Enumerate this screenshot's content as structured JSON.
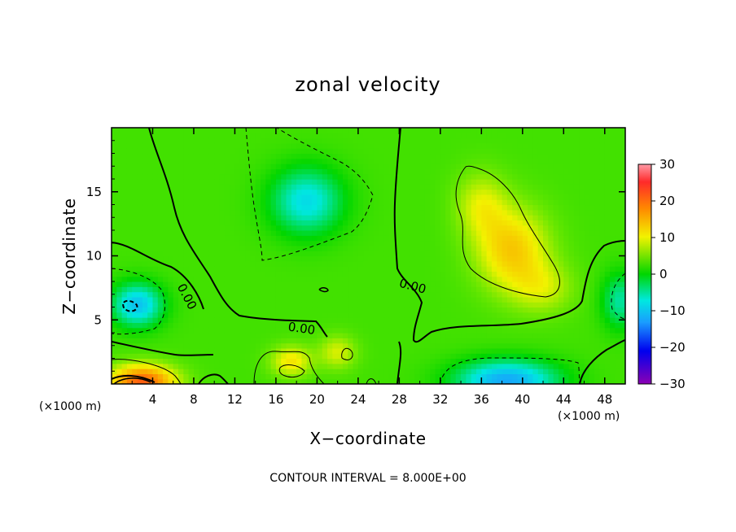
{
  "chart_data": {
    "type": "heatmap",
    "title": "zonal velocity",
    "xlabel": "X−coordinate",
    "ylabel": "Z−coordinate",
    "x_unit_left": "(×1000 m)",
    "x_unit_right": "(×1000 m)",
    "xlim": [
      0,
      50
    ],
    "ylim": [
      0,
      20
    ],
    "x_ticks": [
      4,
      8,
      12,
      16,
      20,
      24,
      28,
      32,
      36,
      40,
      44,
      48
    ],
    "y_ticks": [
      5,
      10,
      15
    ],
    "colorbar": {
      "ticks": [
        30,
        20,
        10,
        0,
        -10,
        -20,
        -30
      ],
      "tick_labels": [
        "30",
        "20",
        "10",
        "0",
        "−10",
        "−20",
        "−30"
      ],
      "range": [
        -30,
        30
      ]
    },
    "contour_labels": [
      {
        "text": "0.00",
        "x": 7.3,
        "z": 6.8,
        "rotate": 62
      },
      {
        "text": "0.00",
        "x": 18.5,
        "z": 4.3,
        "rotate": 8
      },
      {
        "text": "0.00",
        "x": 29.3,
        "z": 7.6,
        "rotate": 15
      }
    ],
    "footer": "CONTOUR INTERVAL = 8.000E+00",
    "contour_interval": 8.0,
    "features": [
      {
        "x": 19,
        "z": 14.3,
        "value": -11,
        "sx": 3.5,
        "sy": 2.6
      },
      {
        "x": 2.5,
        "z": 6.2,
        "value": -13,
        "sx": 2.5,
        "sy": 1.7
      },
      {
        "x": 38.5,
        "z": 0.3,
        "value": -15,
        "sx": 5.0,
        "sy": 1.6
      },
      {
        "x": 49.5,
        "z": 6.5,
        "value": -8,
        "sx": 1.8,
        "sy": 2.2
      },
      {
        "x": 3.0,
        "z": 0.2,
        "value": 18,
        "sx": 3.2,
        "sy": 1.3
      },
      {
        "x": 39.0,
        "z": 10.5,
        "value": 10,
        "sx": 3.5,
        "sy": 3.2
      },
      {
        "x": 36.0,
        "z": 14.0,
        "value": 6,
        "sx": 2.5,
        "sy": 2.5
      },
      {
        "x": 17.5,
        "z": 1.8,
        "value": 8,
        "sx": 2.0,
        "sy": 1.2
      },
      {
        "x": 22.0,
        "z": 2.5,
        "value": 6,
        "sx": 1.8,
        "sy": 1.3
      },
      {
        "x": 42.0,
        "z": 7.5,
        "value": 5,
        "sx": 3.0,
        "sy": 2.0
      }
    ],
    "background_value": 3
  }
}
